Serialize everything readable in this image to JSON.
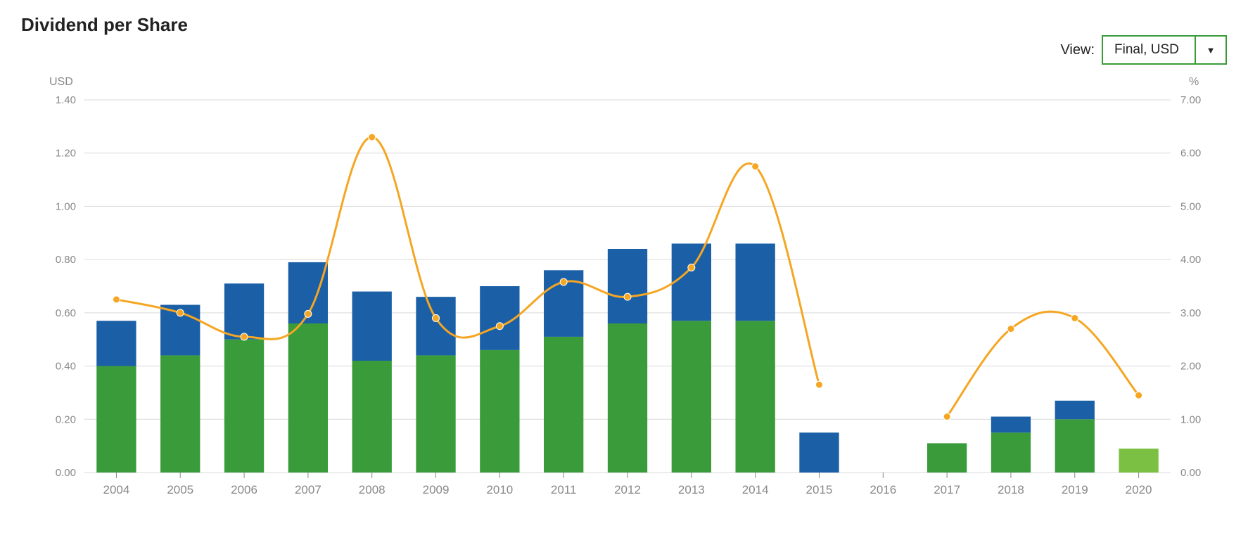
{
  "title": "Dividend per Share",
  "view": {
    "label": "View:",
    "selected": "Final, USD"
  },
  "chart": {
    "type": "stacked-bar-with-line",
    "categories": [
      "2004",
      "2005",
      "2006",
      "2007",
      "2008",
      "2009",
      "2010",
      "2011",
      "2012",
      "2013",
      "2014",
      "2015",
      "2016",
      "2017",
      "2018",
      "2019",
      "2020"
    ],
    "series_green": [
      0.4,
      0.44,
      0.5,
      0.56,
      0.42,
      0.44,
      0.46,
      0.51,
      0.56,
      0.57,
      0.57,
      0.0,
      0.0,
      0.11,
      0.15,
      0.2,
      0.0
    ],
    "series_blue": [
      0.17,
      0.19,
      0.21,
      0.23,
      0.26,
      0.22,
      0.24,
      0.25,
      0.28,
      0.29,
      0.29,
      0.15,
      0.0,
      0.0,
      0.06,
      0.07,
      0.0
    ],
    "series_green_light": [
      0,
      0,
      0,
      0,
      0,
      0,
      0,
      0,
      0,
      0,
      0,
      0,
      0,
      0,
      0,
      0,
      0.09
    ],
    "line_percent": [
      3.25,
      3.0,
      2.55,
      2.98,
      6.3,
      2.9,
      2.75,
      3.58,
      3.3,
      3.85,
      5.75,
      1.65,
      null,
      1.05,
      2.7,
      2.9,
      1.45
    ],
    "colors": {
      "green": "#3a9b3a",
      "blue": "#1b5fa6",
      "green_light": "#7bc043",
      "line": "#f5a623",
      "marker": "#f5a623",
      "grid": "#d9d9d9",
      "text_muted": "#888888",
      "background": "#ffffff"
    },
    "left_axis": {
      "label": "USD",
      "min": 0.0,
      "max": 1.4,
      "step": 0.2,
      "ticks": [
        "0.00",
        "0.20",
        "0.40",
        "0.60",
        "0.80",
        "1.00",
        "1.20",
        "1.40"
      ]
    },
    "right_axis": {
      "label": "%",
      "min": 0.0,
      "max": 7.0,
      "step": 1.0,
      "ticks": [
        "0.00",
        "1.00",
        "2.00",
        "3.00",
        "4.00",
        "5.00",
        "6.00",
        "7.00"
      ]
    },
    "bar_width_ratio": 0.62,
    "line_width": 3,
    "marker_radius": 5
  }
}
